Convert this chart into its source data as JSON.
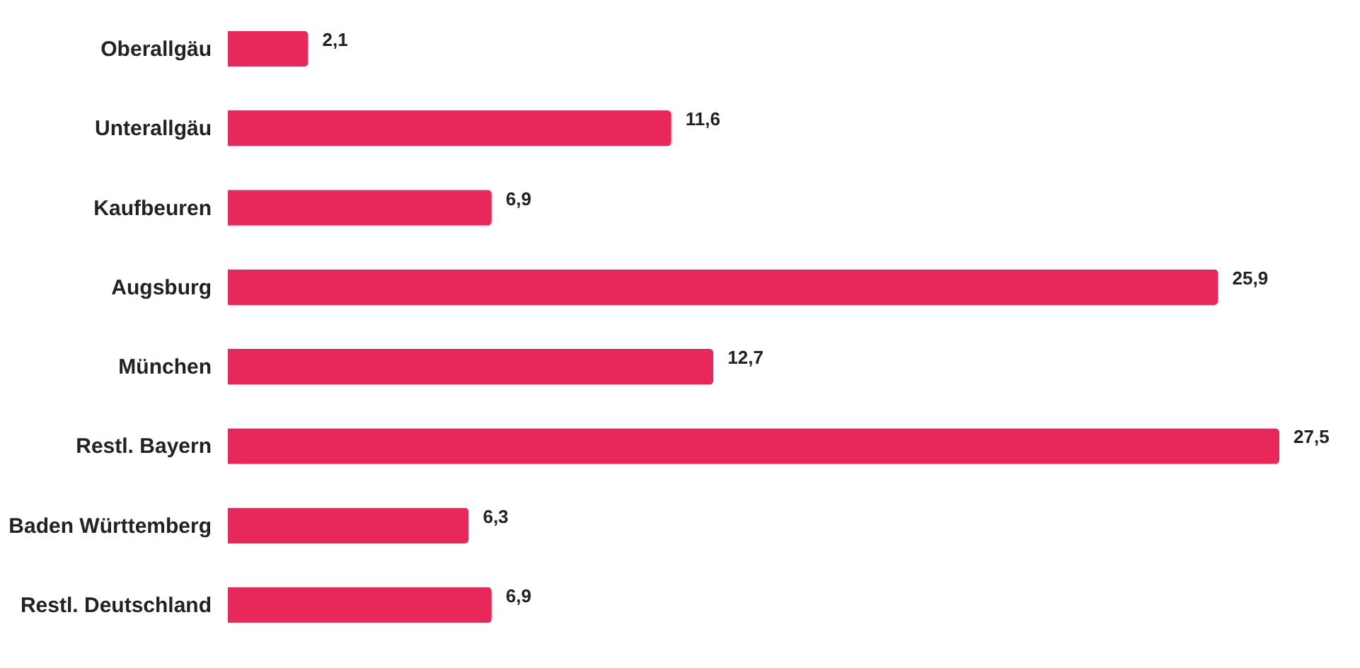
{
  "chart_data": {
    "type": "bar",
    "orientation": "horizontal",
    "categories": [
      "Oberallgäu",
      "Unterallgäu",
      "Kaufbeuren",
      "Augsburg",
      "München",
      "Restl. Bayern",
      "Baden Württemberg",
      "Restl. Deutschland"
    ],
    "values": [
      2.1,
      11.6,
      6.9,
      25.9,
      12.7,
      27.5,
      6.3,
      6.9
    ],
    "value_labels": [
      "2,1",
      "11,6",
      "6,9",
      "25,9",
      "12,7",
      "27,5",
      "6,3",
      "6,9"
    ],
    "color": "#e8285a"
  }
}
